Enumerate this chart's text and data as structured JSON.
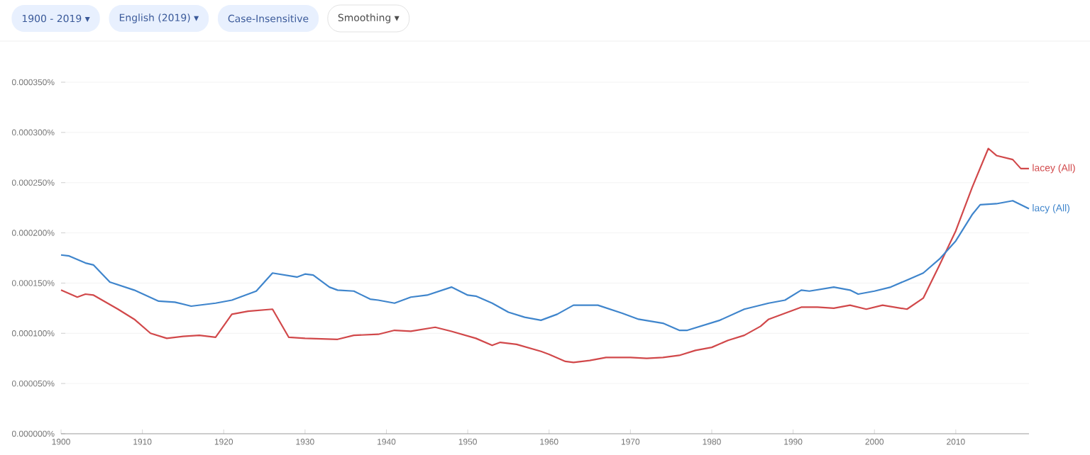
{
  "chart_data": {
    "type": "line",
    "annotations": [
      "1900 - 2019 ▾",
      "English (2019) ▾",
      "Case-Insensitive",
      "Smoothing ▾"
    ],
    "xlim": [
      1900,
      2019
    ],
    "xticks": [
      1900,
      1910,
      1920,
      1930,
      1940,
      1950,
      1960,
      1970,
      1980,
      1990,
      2000,
      2010
    ],
    "ylim": [
      0,
      0.00035
    ],
    "yticks": [
      {
        "value": 0,
        "label": "0.000000%"
      },
      {
        "value": 5e-05,
        "label": "0.000050%"
      },
      {
        "value": 0.0001,
        "label": "0.000100%"
      },
      {
        "value": 0.00015,
        "label": "0.000150%"
      },
      {
        "value": 0.0002,
        "label": "0.000200%"
      },
      {
        "value": 0.00025,
        "label": "0.000250%"
      },
      {
        "value": 0.0003,
        "label": "0.000300%"
      },
      {
        "value": 0.00035,
        "label": "0.000350%"
      }
    ],
    "grid": "y",
    "marker": "none",
    "line_style": "solid",
    "series": [
      {
        "name": "lacey (All)",
        "color": "#d1484a",
        "x": [
          1900,
          1902,
          1903,
          1904,
          1907,
          1909,
          1911,
          1913,
          1915,
          1917,
          1919,
          1921,
          1923,
          1926,
          1928,
          1930,
          1934,
          1936,
          1939,
          1941,
          1943,
          1946,
          1948,
          1951,
          1953,
          1954,
          1956,
          1959,
          1960,
          1962,
          1963,
          1965,
          1967,
          1970,
          1972,
          1974,
          1976,
          1978,
          1980,
          1982,
          1984,
          1986,
          1987,
          1989,
          1991,
          1993,
          1995,
          1997,
          1999,
          2001,
          2004,
          2006,
          2008,
          2010,
          2012,
          2014,
          2015,
          2017,
          2018,
          2019
        ],
        "values": [
          0.000143,
          0.000136,
          0.000139,
          0.000138,
          0.000124,
          0.000114,
          0.0001,
          9.5e-05,
          9.7e-05,
          9.8e-05,
          9.6e-05,
          0.000119,
          0.000122,
          0.000124,
          9.6e-05,
          9.5e-05,
          9.4e-05,
          9.8e-05,
          9.9e-05,
          0.000103,
          0.000102,
          0.000106,
          0.000102,
          9.5e-05,
          8.8e-05,
          9.1e-05,
          8.9e-05,
          8.2e-05,
          7.9e-05,
          7.2e-05,
          7.1e-05,
          7.3e-05,
          7.6e-05,
          7.6e-05,
          7.5e-05,
          7.6e-05,
          7.8e-05,
          8.3e-05,
          8.6e-05,
          9.3e-05,
          9.8e-05,
          0.000107,
          0.000114,
          0.00012,
          0.000126,
          0.000126,
          0.000125,
          0.000128,
          0.000124,
          0.000128,
          0.000124,
          0.000135,
          0.000168,
          0.000202,
          0.000245,
          0.000284,
          0.000277,
          0.000273,
          0.000264,
          0.000264
        ]
      },
      {
        "name": "lacy (All)",
        "color": "#3f85cc",
        "x": [
          1900,
          1901,
          1903,
          1904,
          1906,
          1909,
          1912,
          1914,
          1916,
          1919,
          1921,
          1924,
          1926,
          1929,
          1930,
          1931,
          1933,
          1934,
          1936,
          1938,
          1939,
          1941,
          1943,
          1945,
          1948,
          1950,
          1951,
          1953,
          1955,
          1957,
          1959,
          1961,
          1963,
          1966,
          1969,
          1971,
          1974,
          1976,
          1977,
          1979,
          1981,
          1984,
          1987,
          1989,
          1991,
          1992,
          1995,
          1997,
          1998,
          2000,
          2002,
          2004,
          2006,
          2008,
          2010,
          2012,
          2013,
          2015,
          2017,
          2019
        ],
        "values": [
          0.000178,
          0.000177,
          0.00017,
          0.000168,
          0.000151,
          0.000143,
          0.000132,
          0.000131,
          0.000127,
          0.00013,
          0.000133,
          0.000142,
          0.00016,
          0.000156,
          0.000159,
          0.000158,
          0.000146,
          0.000143,
          0.000142,
          0.000134,
          0.000133,
          0.00013,
          0.000136,
          0.000138,
          0.000146,
          0.000138,
          0.000137,
          0.00013,
          0.000121,
          0.000116,
          0.000113,
          0.000119,
          0.000128,
          0.000128,
          0.00012,
          0.000114,
          0.00011,
          0.000103,
          0.000103,
          0.000108,
          0.000113,
          0.000124,
          0.00013,
          0.000133,
          0.000143,
          0.000142,
          0.000146,
          0.000143,
          0.000139,
          0.000142,
          0.000146,
          0.000153,
          0.00016,
          0.000174,
          0.000192,
          0.000218,
          0.000228,
          0.000229,
          0.000232,
          0.000224
        ]
      }
    ]
  }
}
